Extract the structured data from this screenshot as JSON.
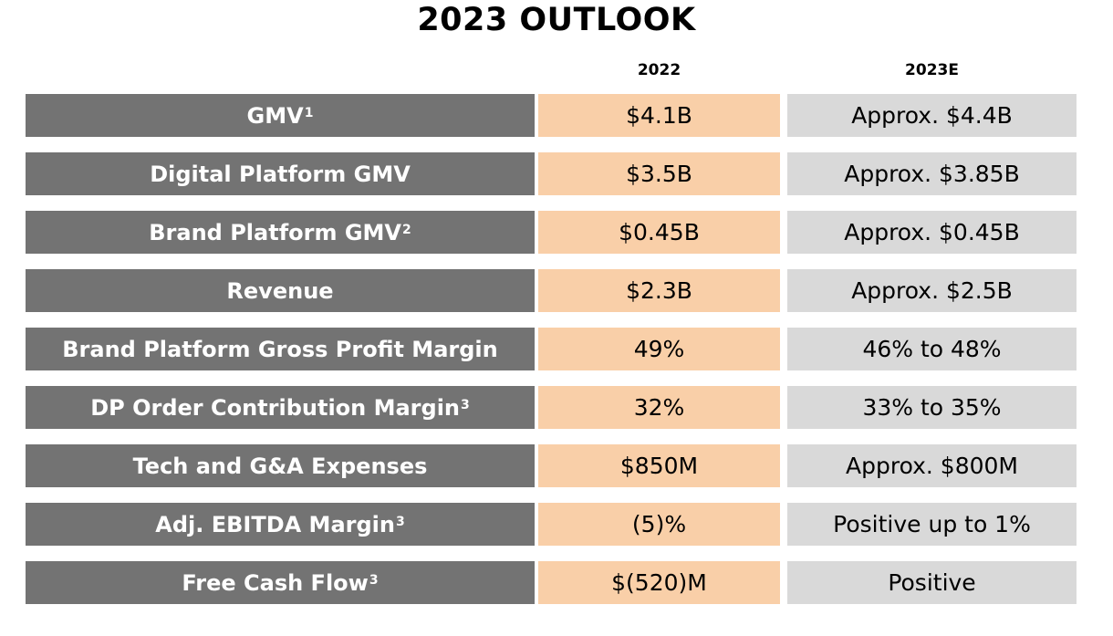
{
  "title": "2023 OUTLOOK",
  "columns": [
    "2022",
    "2023E"
  ],
  "colors": {
    "label_bg": "#737373",
    "col_2022_bg": "#f9cfa8",
    "col_2023e_bg": "#d9d9d9"
  },
  "rows": [
    {
      "label": "GMV",
      "sup": "1",
      "v2022": "$4.1B",
      "v2023e": "Approx. $4.4B"
    },
    {
      "label": "Digital Platform GMV",
      "sup": "",
      "v2022": "$3.5B",
      "v2023e": "Approx. $3.85B"
    },
    {
      "label": "Brand Platform GMV",
      "sup": "2",
      "v2022": "$0.45B",
      "v2023e": "Approx. $0.45B"
    },
    {
      "label": "Revenue",
      "sup": "",
      "v2022": "$2.3B",
      "v2023e": "Approx. $2.5B"
    },
    {
      "label": "Brand Platform Gross Profit Margin",
      "sup": "",
      "v2022": "49%",
      "v2023e": "46% to 48%"
    },
    {
      "label": "DP Order Contribution Margin",
      "sup": "3",
      "v2022": "32%",
      "v2023e": "33% to 35%"
    },
    {
      "label": "Tech and G&A Expenses",
      "sup": "",
      "v2022": "$850M",
      "v2023e": "Approx. $800M"
    },
    {
      "label": "Adj. EBITDA Margin",
      "sup": "3",
      "v2022": "(5)%",
      "v2023e": "Positive up to 1%"
    },
    {
      "label": "Free Cash Flow",
      "sup": "3",
      "v2022": "$(520)M",
      "v2023e": "Positive"
    }
  ]
}
